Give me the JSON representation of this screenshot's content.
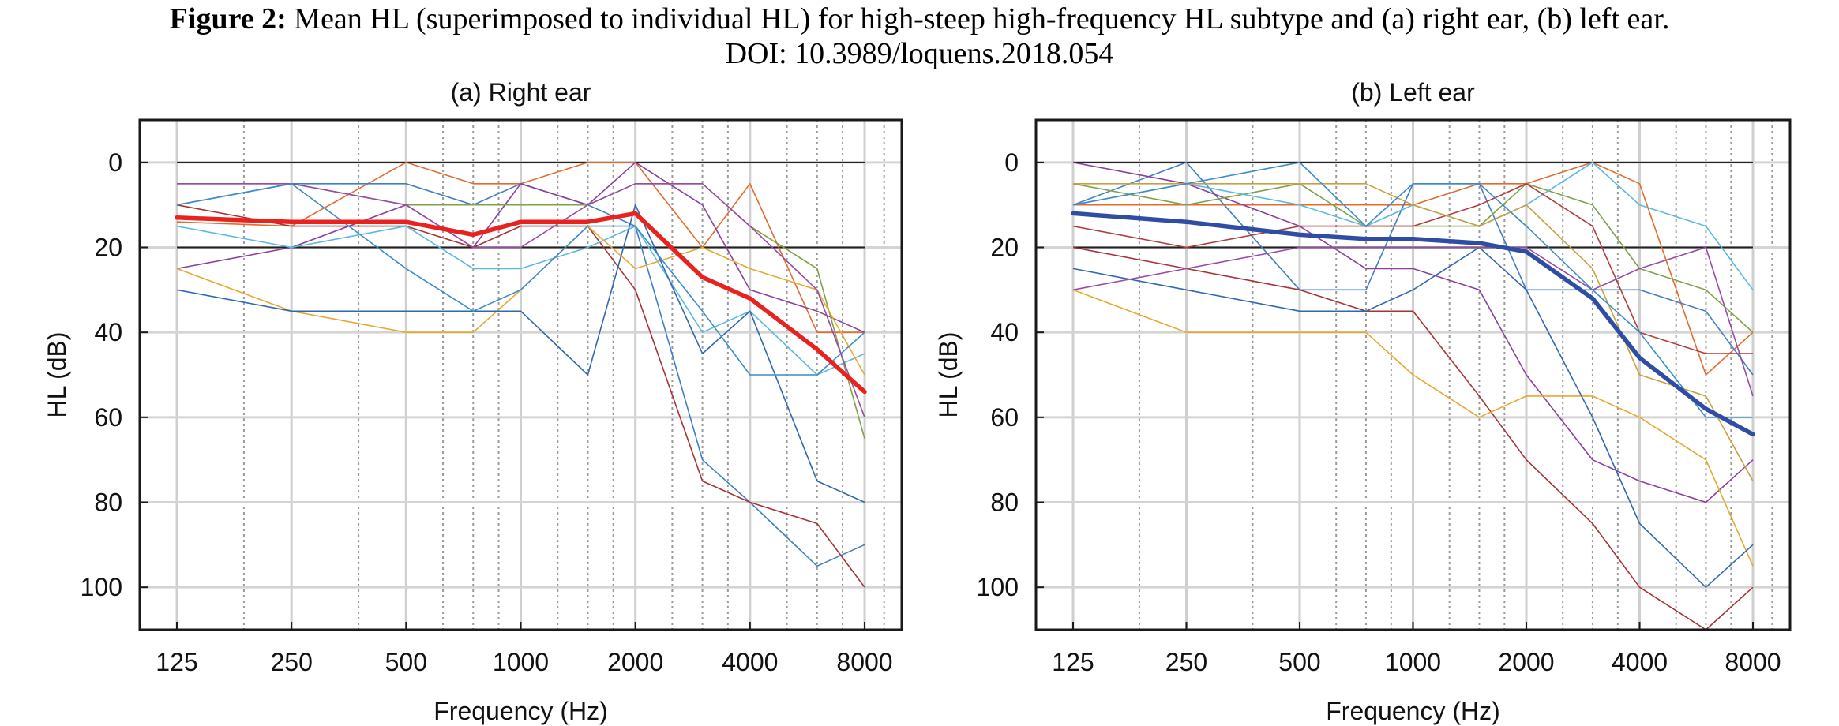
{
  "caption": {
    "label": "Figure 2:",
    "text": "Mean HL (superimposed to individual HL) for high-steep high-frequency HL subtype and (a) right ear, (b) left ear.",
    "doi": "DOI: 10.3989/loquens.2018.054"
  },
  "chart_data": [
    {
      "type": "line",
      "title": "(a) Right ear",
      "xlabel": "Frequency (Hz)",
      "ylabel": "HL (dB)",
      "x_scale": "log",
      "y_inverted": true,
      "ylim": [
        -10,
        110
      ],
      "x_ticks": [
        125,
        250,
        500,
        1000,
        2000,
        4000,
        8000
      ],
      "x_tick_labels": [
        "125",
        "250",
        "500",
        "1000",
        "2000",
        "4000",
        "8000"
      ],
      "y_ticks": [
        0,
        20,
        40,
        60,
        80,
        100
      ],
      "reference_lines": [
        0,
        20
      ],
      "x": [
        125,
        250,
        500,
        750,
        1000,
        1500,
        2000,
        3000,
        4000,
        6000,
        8000
      ],
      "mean": {
        "color": "#e8221e",
        "values": [
          13,
          14,
          14,
          17,
          14,
          14,
          12,
          27,
          32,
          44,
          54
        ]
      },
      "series": [
        {
          "color": "#e36b2c",
          "values": [
            14,
            15,
            0,
            5,
            5,
            0,
            0,
            20,
            5,
            40,
            40
          ]
        },
        {
          "color": "#3f7fc4",
          "values": [
            10,
            5,
            5,
            10,
            5,
            10,
            15,
            70,
            80,
            95,
            90
          ]
        },
        {
          "color": "#8a3fa0",
          "values": [
            25,
            20,
            10,
            20,
            5,
            10,
            0,
            10,
            30,
            35,
            40
          ]
        },
        {
          "color": "#a83236",
          "values": [
            10,
            15,
            15,
            20,
            15,
            15,
            30,
            75,
            80,
            85,
            100
          ]
        },
        {
          "color": "#7fa14a",
          "values": [
            5,
            5,
            10,
            10,
            10,
            10,
            5,
            5,
            15,
            25,
            65
          ]
        },
        {
          "color": "#5bb8e0",
          "values": [
            15,
            20,
            15,
            25,
            25,
            20,
            15,
            40,
            35,
            50,
            45
          ]
        },
        {
          "color": "#e6a82e",
          "values": [
            25,
            35,
            40,
            40,
            30,
            15,
            25,
            20,
            25,
            30,
            50
          ]
        },
        {
          "color": "#2f68b0",
          "values": [
            30,
            35,
            35,
            35,
            35,
            50,
            10,
            45,
            35,
            75,
            80
          ]
        },
        {
          "color": "#9a4aa6",
          "values": [
            5,
            5,
            10,
            20,
            20,
            10,
            5,
            5,
            15,
            30,
            60
          ]
        },
        {
          "color": "#3c8cc8",
          "values": [
            10,
            5,
            25,
            35,
            30,
            15,
            15,
            35,
            50,
            50,
            40
          ]
        }
      ]
    },
    {
      "type": "line",
      "title": "(b) Left ear",
      "xlabel": "Frequency (Hz)",
      "ylabel": "HL (dB)",
      "x_scale": "log",
      "y_inverted": true,
      "ylim": [
        -10,
        110
      ],
      "x_ticks": [
        125,
        250,
        500,
        1000,
        2000,
        4000,
        8000
      ],
      "x_tick_labels": [
        "125",
        "250",
        "500",
        "1000",
        "2000",
        "4000",
        "8000"
      ],
      "y_ticks": [
        0,
        20,
        40,
        60,
        80,
        100
      ],
      "reference_lines": [
        0,
        20
      ],
      "x": [
        125,
        250,
        500,
        750,
        1000,
        1500,
        2000,
        3000,
        4000,
        6000,
        8000
      ],
      "mean": {
        "color": "#2f4da3",
        "values": [
          12,
          14,
          17,
          18,
          18,
          19,
          21,
          32,
          46,
          58,
          64
        ]
      },
      "series": [
        {
          "color": "#e36b2c",
          "values": [
            10,
            10,
            10,
            10,
            10,
            5,
            5,
            0,
            5,
            50,
            40
          ]
        },
        {
          "color": "#3f7fc4",
          "values": [
            10,
            0,
            30,
            30,
            5,
            5,
            30,
            30,
            30,
            35,
            50
          ]
        },
        {
          "color": "#8a3fa0",
          "values": [
            0,
            5,
            15,
            25,
            25,
            30,
            50,
            70,
            75,
            80,
            70
          ]
        },
        {
          "color": "#a83236",
          "values": [
            20,
            25,
            30,
            35,
            35,
            55,
            70,
            85,
            100,
            110,
            100
          ]
        },
        {
          "color": "#7fa14a",
          "values": [
            5,
            10,
            5,
            15,
            15,
            15,
            5,
            10,
            25,
            30,
            40
          ]
        },
        {
          "color": "#5bb8e0",
          "values": [
            10,
            5,
            10,
            15,
            10,
            15,
            10,
            0,
            10,
            15,
            30
          ]
        },
        {
          "color": "#e6a82e",
          "values": [
            30,
            40,
            40,
            40,
            50,
            60,
            55,
            55,
            60,
            70,
            95
          ]
        },
        {
          "color": "#2f68b0",
          "values": [
            25,
            30,
            35,
            35,
            30,
            20,
            30,
            60,
            85,
            100,
            90
          ]
        },
        {
          "color": "#9a4aa6",
          "values": [
            30,
            25,
            20,
            20,
            20,
            20,
            20,
            30,
            25,
            20,
            55
          ]
        },
        {
          "color": "#b03c3c",
          "values": [
            15,
            20,
            15,
            15,
            15,
            10,
            5,
            15,
            40,
            45,
            45
          ]
        },
        {
          "color": "#c8a040",
          "values": [
            5,
            5,
            5,
            5,
            10,
            15,
            10,
            25,
            50,
            55,
            75
          ]
        },
        {
          "color": "#3c8cc8",
          "values": [
            10,
            5,
            0,
            15,
            5,
            5,
            15,
            30,
            40,
            60,
            60
          ]
        }
      ]
    }
  ]
}
